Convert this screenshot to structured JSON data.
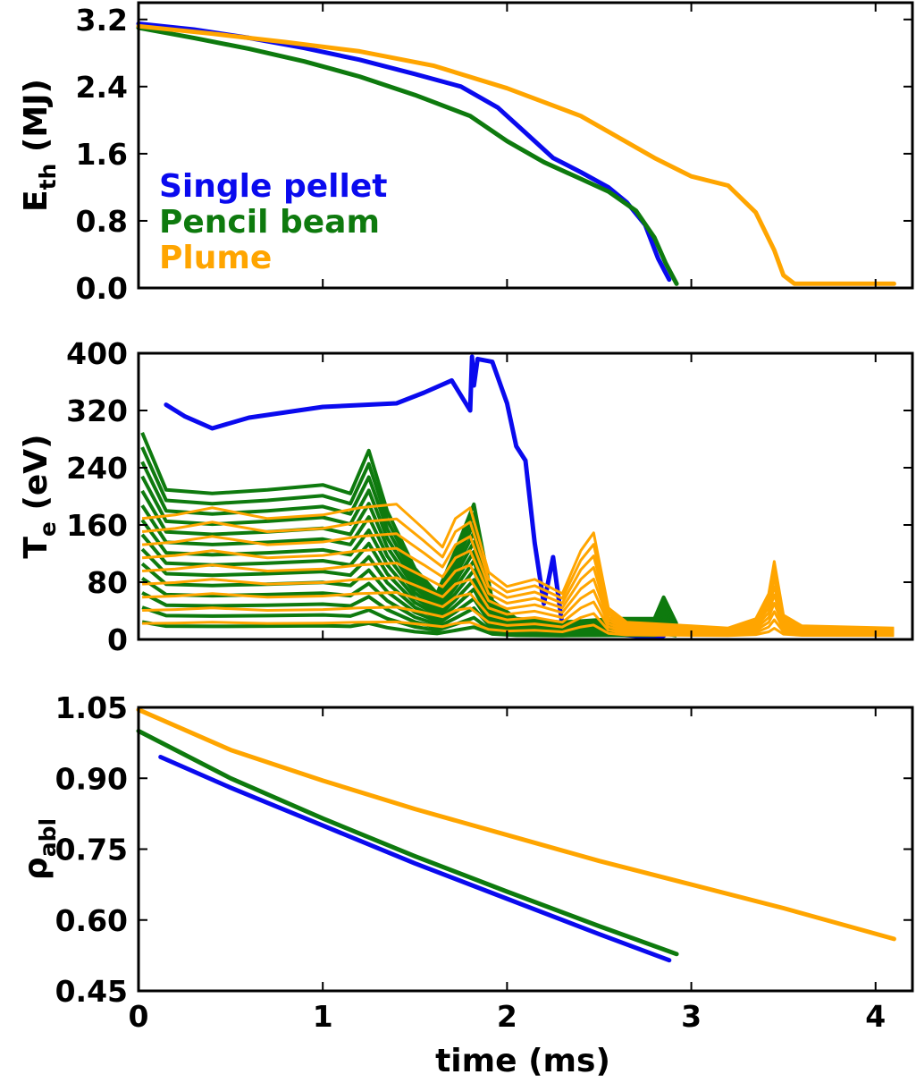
{
  "colors": {
    "single": "#0a0aee",
    "pencil": "#0e7a0e",
    "plume": "#ffa500"
  },
  "xlabel": "time (ms)",
  "xticks": [
    0,
    1,
    2,
    3,
    4
  ],
  "xlim": [
    0,
    4.2
  ],
  "legend": [
    {
      "name": "Single pellet",
      "color": "#0a0aee"
    },
    {
      "name": "Pencil beam",
      "color": "#0e7a0e"
    },
    {
      "name": "Plume",
      "color": "#ffa500"
    }
  ],
  "chart_data": [
    {
      "type": "line",
      "ylabel_main": "E",
      "ylabel_sub": "th",
      "ylabel_unit": " (MJ)",
      "ylim": [
        0,
        3.4
      ],
      "yticks": [
        "3.2",
        "2.4",
        "1.6",
        "0.8",
        "0.0"
      ],
      "ytick_values": [
        3.2,
        2.4,
        1.6,
        0.8,
        0.0
      ],
      "series": [
        {
          "name": "Single pellet",
          "color": "#0a0aee",
          "x": [
            0,
            0.3,
            0.6,
            0.9,
            1.2,
            1.5,
            1.75,
            1.95,
            2.1,
            2.25,
            2.4,
            2.55,
            2.65,
            2.75,
            2.82,
            2.88
          ],
          "y": [
            3.15,
            3.08,
            2.98,
            2.86,
            2.72,
            2.55,
            2.4,
            2.15,
            1.85,
            1.55,
            1.38,
            1.2,
            1.02,
            0.75,
            0.35,
            0.1
          ]
        },
        {
          "name": "Pencil beam",
          "color": "#0e7a0e",
          "x": [
            0,
            0.3,
            0.6,
            0.9,
            1.2,
            1.5,
            1.8,
            2.0,
            2.2,
            2.4,
            2.55,
            2.7,
            2.8,
            2.86,
            2.92
          ],
          "y": [
            3.1,
            2.98,
            2.85,
            2.7,
            2.52,
            2.3,
            2.05,
            1.75,
            1.5,
            1.3,
            1.15,
            0.92,
            0.6,
            0.3,
            0.05
          ]
        },
        {
          "name": "Plume",
          "color": "#ffa500",
          "x": [
            0,
            0.4,
            0.8,
            1.2,
            1.6,
            2.0,
            2.4,
            2.8,
            3.0,
            3.2,
            3.35,
            3.45,
            3.5,
            3.56,
            3.7,
            4.1
          ],
          "y": [
            3.12,
            3.03,
            2.93,
            2.82,
            2.65,
            2.38,
            2.05,
            1.55,
            1.33,
            1.22,
            0.9,
            0.45,
            0.15,
            0.05,
            0.05,
            0.05
          ]
        }
      ]
    },
    {
      "type": "line",
      "ylabel_main": "T",
      "ylabel_sub": "e",
      "ylabel_unit": " (eV)",
      "ylim": [
        0,
        400
      ],
      "yticks": [
        "400",
        "320",
        "240",
        "160",
        "80",
        "0"
      ],
      "ytick_values": [
        400,
        320,
        240,
        160,
        80,
        0
      ],
      "series": [
        {
          "name": "Single pellet",
          "color": "#0a0aee",
          "x": [
            0.15,
            0.25,
            0.4,
            0.6,
            1.0,
            1.4,
            1.55,
            1.7,
            1.8,
            1.81,
            1.82,
            1.84,
            1.92,
            2.0,
            2.05,
            2.1,
            2.15,
            2.2,
            2.25,
            2.3,
            2.45,
            2.7,
            2.85
          ],
          "y": [
            328,
            312,
            295,
            310,
            325,
            330,
            345,
            362,
            320,
            395,
            355,
            392,
            388,
            330,
            270,
            250,
            135,
            50,
            115,
            20,
            10,
            5,
            5
          ]
        },
        {
          "name": "Pencil beam",
          "color": "#0e7a0e",
          "x": [
            0.02,
            0.15,
            0.4,
            0.7,
            1.0,
            1.15,
            1.25,
            1.35,
            1.5,
            1.62,
            1.72,
            1.82,
            1.92,
            2.05,
            2.3,
            2.6,
            2.8,
            2.85,
            2.92
          ],
          "y": [
            285,
            205,
            200,
            205,
            212,
            200,
            260,
            175,
            95,
            60,
            120,
            185,
            50,
            25,
            20,
            25,
            25,
            55,
            18
          ]
        },
        {
          "name": "Plume",
          "color": "#ffa500",
          "x": [
            0.02,
            0.2,
            0.4,
            0.7,
            1.0,
            1.2,
            1.4,
            1.55,
            1.65,
            1.72,
            1.8,
            1.9,
            2.0,
            2.15,
            2.3,
            2.4,
            2.47,
            2.55,
            2.65,
            2.8,
            3.0,
            3.2,
            3.35,
            3.42,
            3.45,
            3.5,
            3.6,
            4.1
          ],
          "y": [
            165,
            170,
            180,
            165,
            170,
            180,
            185,
            150,
            125,
            165,
            180,
            90,
            70,
            80,
            60,
            120,
            145,
            40,
            20,
            18,
            15,
            12,
            25,
            60,
            105,
            30,
            15,
            12
          ]
        }
      ]
    },
    {
      "type": "line",
      "ylabel_main": "ρ",
      "ylabel_sub": "abl",
      "ylabel_unit": "",
      "ylim": [
        0.45,
        1.05
      ],
      "yticks": [
        "1.05",
        "0.90",
        "0.75",
        "0.60",
        "0.45"
      ],
      "ytick_values": [
        1.05,
        0.9,
        0.75,
        0.6,
        0.45
      ],
      "series": [
        {
          "name": "Single pellet",
          "color": "#0a0aee",
          "x": [
            0.12,
            0.5,
            1.0,
            1.5,
            2.0,
            2.5,
            2.88
          ],
          "y": [
            0.945,
            0.88,
            0.8,
            0.72,
            0.645,
            0.57,
            0.515
          ]
        },
        {
          "name": "Pencil beam",
          "color": "#0e7a0e",
          "x": [
            0,
            0.5,
            1.0,
            1.5,
            2.0,
            2.5,
            2.92
          ],
          "y": [
            1.0,
            0.9,
            0.815,
            0.735,
            0.66,
            0.587,
            0.528
          ]
        },
        {
          "name": "Plume",
          "color": "#ffa500",
          "x": [
            0,
            0.5,
            1.0,
            1.5,
            2.0,
            2.5,
            3.0,
            3.5,
            4.1
          ],
          "y": [
            1.045,
            0.96,
            0.895,
            0.835,
            0.78,
            0.725,
            0.675,
            0.625,
            0.56
          ]
        }
      ]
    }
  ]
}
